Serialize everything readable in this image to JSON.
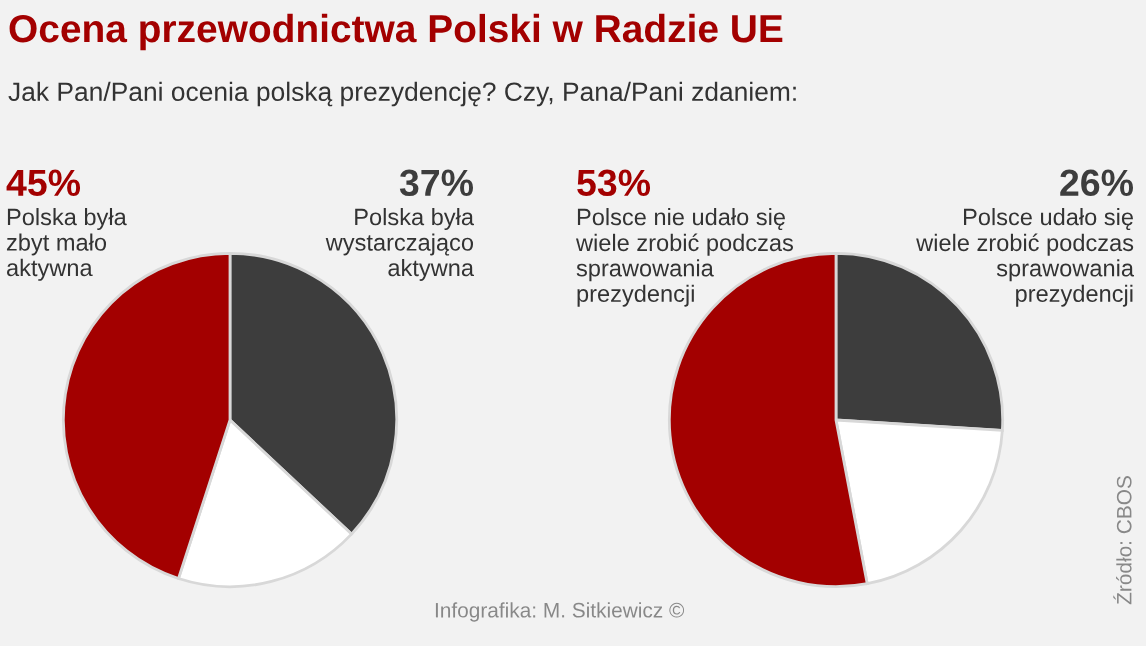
{
  "chart_data": [
    {
      "type": "pie",
      "title": "Ocena przewodnictwa Polski w Radzie UE",
      "subtitle": "Jak Pan/Pani ocenia polską prezydencję? Czy, Pana/Pani zdaniem:",
      "categories": [
        "Polska była\nzbyt mało\naktywna",
        "Polska była\nwystarczająco\naktywna",
        null
      ],
      "values": [
        45,
        37,
        18
      ],
      "colors": [
        "#a30000",
        "#3d3d3d",
        "#ffffff"
      ],
      "value_labels": [
        "45%",
        "37%",
        null
      ],
      "annotations": [
        "Infografika: M. Sitkiewicz ©"
      ]
    },
    {
      "type": "pie",
      "categories": [
        "Polsce nie udało się\nwiele zrobić podczas\nsprawowania\nprezydencji",
        "Polsce udało się\nwiele zrobić podczas\nsprawowania\nprezydencji",
        null
      ],
      "values": [
        53,
        26,
        21
      ],
      "colors": [
        "#a30000",
        "#3d3d3d",
        "#ffffff"
      ],
      "value_labels": [
        "53%",
        "26%",
        null
      ],
      "annotations": [
        "Źródło: CBOS"
      ]
    }
  ]
}
